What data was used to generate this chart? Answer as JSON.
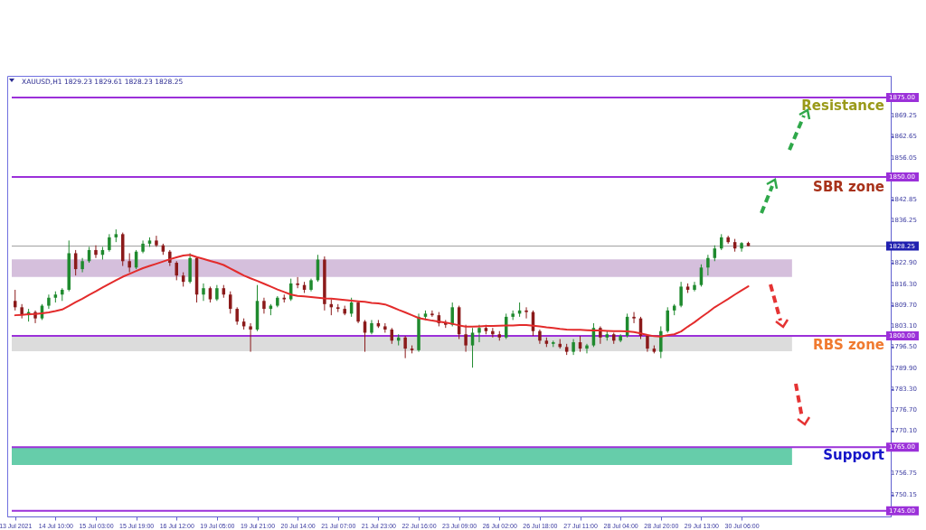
{
  "chart_data": {
    "type": "candlestick",
    "title": "XAUUSD,H1  1829.23 1829.61 1828.23 1828.25",
    "categories": [
      "13 Jul 2021",
      null,
      null,
      null,
      null,
      null,
      "14 Jul 10:00",
      null,
      null,
      null,
      null,
      null,
      "15 Jul 03:00",
      null,
      null,
      null,
      null,
      null,
      "15 Jul 19:00",
      null,
      null,
      null,
      null,
      null,
      "16 Jul 12:00",
      null,
      null,
      null,
      null,
      null,
      "19 Jul 05:00",
      null,
      null,
      null,
      null,
      null,
      "19 Jul 21:00",
      null,
      null,
      null,
      null,
      null,
      "20 Jul 14:00",
      null,
      null,
      null,
      null,
      null,
      "21 Jul 07:00",
      null,
      null,
      null,
      null,
      null,
      "21 Jul 23:00",
      null,
      null,
      null,
      null,
      null,
      "22 Jul 16:00",
      null,
      null,
      null,
      null,
      null,
      "23 Jul 09:00",
      null,
      null,
      null,
      null,
      null,
      "26 Jul 02:00",
      null,
      null,
      null,
      null,
      null,
      "26 Jul 18:00",
      null,
      null,
      null,
      null,
      null,
      "27 Jul 11:00",
      null,
      null,
      null,
      null,
      null,
      "28 Jul 04:00",
      null,
      null,
      null,
      null,
      null,
      "28 Jul 20:00",
      null,
      null,
      null,
      null,
      null,
      "29 Jul 13:00",
      null,
      null,
      null,
      null,
      null,
      "30 Jul 06:00",
      null
    ],
    "ohlc": [
      [
        1811,
        1814.5,
        1808,
        1809
      ],
      [
        1809,
        1810,
        1805.5,
        1806.5
      ],
      [
        1806.5,
        1808.5,
        1804.5,
        1807.5
      ],
      [
        1807.5,
        1808,
        1804,
        1805.5
      ],
      [
        1805.5,
        1810,
        1805,
        1809.5
      ],
      [
        1809.5,
        1813,
        1808.5,
        1812
      ],
      [
        1812,
        1814,
        1810.5,
        1813
      ],
      [
        1813,
        1815,
        1811,
        1814.5
      ],
      [
        1814.5,
        1830,
        1814,
        1826
      ],
      [
        1826,
        1827,
        1819,
        1821
      ],
      [
        1821,
        1824.5,
        1820,
        1823.5
      ],
      [
        1823.5,
        1828,
        1823,
        1827
      ],
      [
        1827,
        1828.5,
        1824.5,
        1825.5
      ],
      [
        1825.5,
        1828,
        1824,
        1827
      ],
      [
        1827,
        1832,
        1826.5,
        1831
      ],
      [
        1831,
        1833.5,
        1829.5,
        1832
      ],
      [
        1832,
        1832.5,
        1822,
        1823.5
      ],
      [
        1823.5,
        1826,
        1820,
        1821.5
      ],
      [
        1821.5,
        1827,
        1821,
        1826.5
      ],
      [
        1826.5,
        1830,
        1826,
        1829
      ],
      [
        1829,
        1831,
        1828,
        1830
      ],
      [
        1830,
        1831.5,
        1828,
        1828.5
      ],
      [
        1828.5,
        1829,
        1825.5,
        1826.5
      ],
      [
        1826.5,
        1827,
        1822,
        1823
      ],
      [
        1823,
        1823.5,
        1817.5,
        1819
      ],
      [
        1819,
        1820,
        1815.5,
        1817
      ],
      [
        1817,
        1826,
        1816.5,
        1824.5
      ],
      [
        1824.5,
        1825,
        1810.5,
        1813
      ],
      [
        1813,
        1816.5,
        1811,
        1815
      ],
      [
        1815,
        1815.5,
        1810.5,
        1811.5
      ],
      [
        1811.5,
        1816,
        1811,
        1815
      ],
      [
        1815,
        1816,
        1812,
        1813
      ],
      [
        1813,
        1814,
        1807,
        1808.5
      ],
      [
        1808.5,
        1809,
        1803.5,
        1804.5
      ],
      [
        1804.5,
        1805.5,
        1802,
        1803
      ],
      [
        1803,
        1804,
        1795,
        1802
      ],
      [
        1802,
        1816,
        1801.5,
        1811
      ],
      [
        1811,
        1812,
        1807,
        1808.5
      ],
      [
        1808.5,
        1810,
        1806.5,
        1809.5
      ],
      [
        1809.5,
        1812.5,
        1809,
        1812
      ],
      [
        1812,
        1813,
        1810.5,
        1811.5
      ],
      [
        1811.5,
        1818,
        1811,
        1816.5
      ],
      [
        1816.5,
        1818.5,
        1815,
        1816
      ],
      [
        1816,
        1817,
        1813.5,
        1814.5
      ],
      [
        1814.5,
        1818,
        1814,
        1817.5
      ],
      [
        1817.5,
        1825.5,
        1817,
        1824
      ],
      [
        1824,
        1825,
        1808,
        1810
      ],
      [
        1810,
        1811.5,
        1806.5,
        1809
      ],
      [
        1809,
        1810,
        1807.5,
        1808.5
      ],
      [
        1808.5,
        1809.5,
        1806.5,
        1807
      ],
      [
        1807,
        1812,
        1806,
        1810.5
      ],
      [
        1810.5,
        1811,
        1804,
        1804.5
      ],
      [
        1804.5,
        1805,
        1795,
        1801
      ],
      [
        1801,
        1805,
        1800.5,
        1804
      ],
      [
        1804,
        1805,
        1802.5,
        1803
      ],
      [
        1803,
        1804,
        1801,
        1802
      ],
      [
        1802,
        1802.5,
        1797.5,
        1798.5
      ],
      [
        1798.5,
        1800.5,
        1797,
        1799.5
      ],
      [
        1799.5,
        1800,
        1793,
        1796
      ],
      [
        1796,
        1797,
        1794.5,
        1795.5
      ],
      [
        1795.5,
        1807,
        1795,
        1806
      ],
      [
        1806,
        1808,
        1805,
        1807
      ],
      [
        1807,
        1808,
        1806,
        1806.5
      ],
      [
        1806.5,
        1807.5,
        1803,
        1804
      ],
      [
        1804,
        1805,
        1802.5,
        1803.5
      ],
      [
        1803.5,
        1810.5,
        1803,
        1809
      ],
      [
        1809,
        1809.5,
        1799,
        1800.5
      ],
      [
        1800.5,
        1803.5,
        1795,
        1797
      ],
      [
        1797,
        1802.5,
        1790,
        1801
      ],
      [
        1801,
        1803.5,
        1798,
        1802.5
      ],
      [
        1802.5,
        1803.5,
        1800.5,
        1801.5
      ],
      [
        1801.5,
        1802.5,
        1799.5,
        1800.5
      ],
      [
        1800.5,
        1801.5,
        1798.5,
        1799.5
      ],
      [
        1799.5,
        1807,
        1799,
        1806
      ],
      [
        1806,
        1808,
        1805,
        1807
      ],
      [
        1807,
        1810.5,
        1806,
        1808
      ],
      [
        1808,
        1809,
        1805.5,
        1807.5
      ],
      [
        1807.5,
        1808,
        1800,
        1801.5
      ],
      [
        1801.5,
        1802,
        1797.5,
        1798.5
      ],
      [
        1798.5,
        1799.5,
        1796.5,
        1797.5
      ],
      [
        1797.5,
        1798.5,
        1796.5,
        1798
      ],
      [
        1797.5,
        1799,
        1796,
        1796.5
      ],
      [
        1796.5,
        1797.5,
        1794,
        1795
      ],
      [
        1795,
        1799,
        1794,
        1798
      ],
      [
        1798,
        1800,
        1795,
        1796
      ],
      [
        1796,
        1797.5,
        1794.5,
        1797
      ],
      [
        1797,
        1804,
        1796.5,
        1802.5
      ],
      [
        1802.5,
        1803,
        1797.5,
        1799.5
      ],
      [
        1799.5,
        1801.5,
        1798.5,
        1800.5
      ],
      [
        1800.5,
        1801,
        1797.5,
        1798.5
      ],
      [
        1798.5,
        1800.5,
        1798,
        1800
      ],
      [
        1800,
        1807,
        1799.5,
        1806
      ],
      [
        1806,
        1807.5,
        1804,
        1805.5
      ],
      [
        1805.5,
        1806,
        1799,
        1800
      ],
      [
        1800,
        1800.5,
        1795,
        1796
      ],
      [
        1796,
        1797,
        1794.5,
        1795
      ],
      [
        1795,
        1803,
        1793,
        1801.5
      ],
      [
        1801.5,
        1809,
        1801,
        1808
      ],
      [
        1808,
        1810,
        1806.5,
        1809.5
      ],
      [
        1809.5,
        1817,
        1809,
        1815.5
      ],
      [
        1815.5,
        1816.5,
        1813.5,
        1814.5
      ],
      [
        1814.5,
        1817,
        1814,
        1816
      ],
      [
        1816,
        1822.5,
        1815.5,
        1821.5
      ],
      [
        1821.5,
        1825.5,
        1819,
        1824.5
      ],
      [
        1824.5,
        1828.5,
        1823.5,
        1827.5
      ],
      [
        1827.5,
        1832,
        1827,
        1831
      ],
      [
        1831,
        1831.5,
        1829,
        1829.5
      ],
      [
        1829.5,
        1830.5,
        1826.5,
        1827.5
      ],
      [
        1827.5,
        1829.5,
        1826.5,
        1829.2
      ],
      [
        1829.23,
        1829.61,
        1828.23,
        1828.25
      ]
    ],
    "series": [
      {
        "type": "line",
        "color": "#e32b2b",
        "values": [
          1806.5,
          1806.6,
          1806.8,
          1806.9,
          1807.1,
          1807.4,
          1807.8,
          1808.3,
          1809.4,
          1810.6,
          1811.7,
          1812.9,
          1814.0,
          1815.2,
          1816.4,
          1817.5,
          1818.6,
          1819.5,
          1820.4,
          1821.3,
          1822.0,
          1822.7,
          1823.4,
          1824.1,
          1824.7,
          1825.3,
          1825.5,
          1824.8,
          1824.2,
          1823.6,
          1823.0,
          1822.3,
          1821.2,
          1820.1,
          1819.0,
          1818.1,
          1817.3,
          1816.4,
          1815.5,
          1814.6,
          1813.8,
          1813.0,
          1812.6,
          1812.4,
          1812.2,
          1812.0,
          1811.8,
          1811.7,
          1811.5,
          1811.3,
          1811.1,
          1810.9,
          1810.7,
          1810.4,
          1810.2,
          1809.9,
          1809.1,
          1808.2,
          1807.4,
          1806.5,
          1805.6,
          1805.2,
          1804.8,
          1804.5,
          1804.2,
          1803.8,
          1803.3,
          1802.9,
          1802.9,
          1803.0,
          1803.1,
          1803.1,
          1803.2,
          1803.3,
          1803.3,
          1803.4,
          1803.4,
          1803.2,
          1803.0,
          1802.7,
          1802.5,
          1802.2,
          1802.0,
          1801.9,
          1801.9,
          1801.8,
          1801.7,
          1801.7,
          1801.6,
          1801.5,
          1801.5,
          1801.4,
          1801.2,
          1800.8,
          1800.3,
          1799.9,
          1799.8,
          1800.2,
          1800.5,
          1801.4,
          1802.9,
          1804.3,
          1805.9,
          1807.4,
          1809.0,
          1810.3,
          1811.6,
          1813.0,
          1814.3,
          1815.6
        ]
      }
    ],
    "ylim": [
      1743.2,
      1881.8
    ],
    "yticks": [
      {
        "value": 1869.25,
        "label": "1869.25"
      },
      {
        "value": 1862.65,
        "label": "1862.65"
      },
      {
        "value": 1856.05,
        "label": "1856.05"
      },
      {
        "value": 1842.85,
        "label": "1842.85"
      },
      {
        "value": 1836.25,
        "label": "1836.25"
      },
      {
        "value": 1822.9,
        "label": "1822.90"
      },
      {
        "value": 1816.3,
        "label": "1816.30"
      },
      {
        "value": 1809.7,
        "label": "1809.70"
      },
      {
        "value": 1803.1,
        "label": "1803.10"
      },
      {
        "value": 1796.5,
        "label": "1796.50"
      },
      {
        "value": 1789.9,
        "label": "1789.90"
      },
      {
        "value": 1783.3,
        "label": "1783.30"
      },
      {
        "value": 1776.7,
        "label": "1776.70"
      },
      {
        "value": 1770.1,
        "label": "1770.10"
      },
      {
        "value": 1756.75,
        "label": "1756.75"
      },
      {
        "value": 1750.15,
        "label": "1750.15"
      }
    ],
    "ref_lines": [
      {
        "axis": "y",
        "value": 1875,
        "label": "1875.00",
        "color": "#9b30d9"
      },
      {
        "axis": "y",
        "value": 1850,
        "label": "1850.00",
        "color": "#9b30d9"
      },
      {
        "axis": "y",
        "value": 1800,
        "label": "1800.00",
        "color": "#9b30d9"
      },
      {
        "axis": "y",
        "value": 1765,
        "label": "1765.00",
        "color": "#9b30d9"
      },
      {
        "axis": "y",
        "value": 1745,
        "label": "1745.00",
        "color": "#9b30d9"
      },
      {
        "axis": "y",
        "value": 1828.25,
        "label": "1828.25",
        "color": "#a0a0a0"
      }
    ],
    "bands": [
      {
        "axis": "y",
        "from": 1818.5,
        "to": 1824.1,
        "color": "#d5bfdc"
      },
      {
        "axis": "y",
        "from": 1795.2,
        "to": 1800,
        "color": "#dcdcdc"
      },
      {
        "axis": "y",
        "from": 1759.4,
        "to": 1764.8,
        "color": "#66cdaa"
      }
    ],
    "annotations": [
      "Resistance",
      "SBR zone",
      "RBS zone",
      "Support"
    ]
  }
}
